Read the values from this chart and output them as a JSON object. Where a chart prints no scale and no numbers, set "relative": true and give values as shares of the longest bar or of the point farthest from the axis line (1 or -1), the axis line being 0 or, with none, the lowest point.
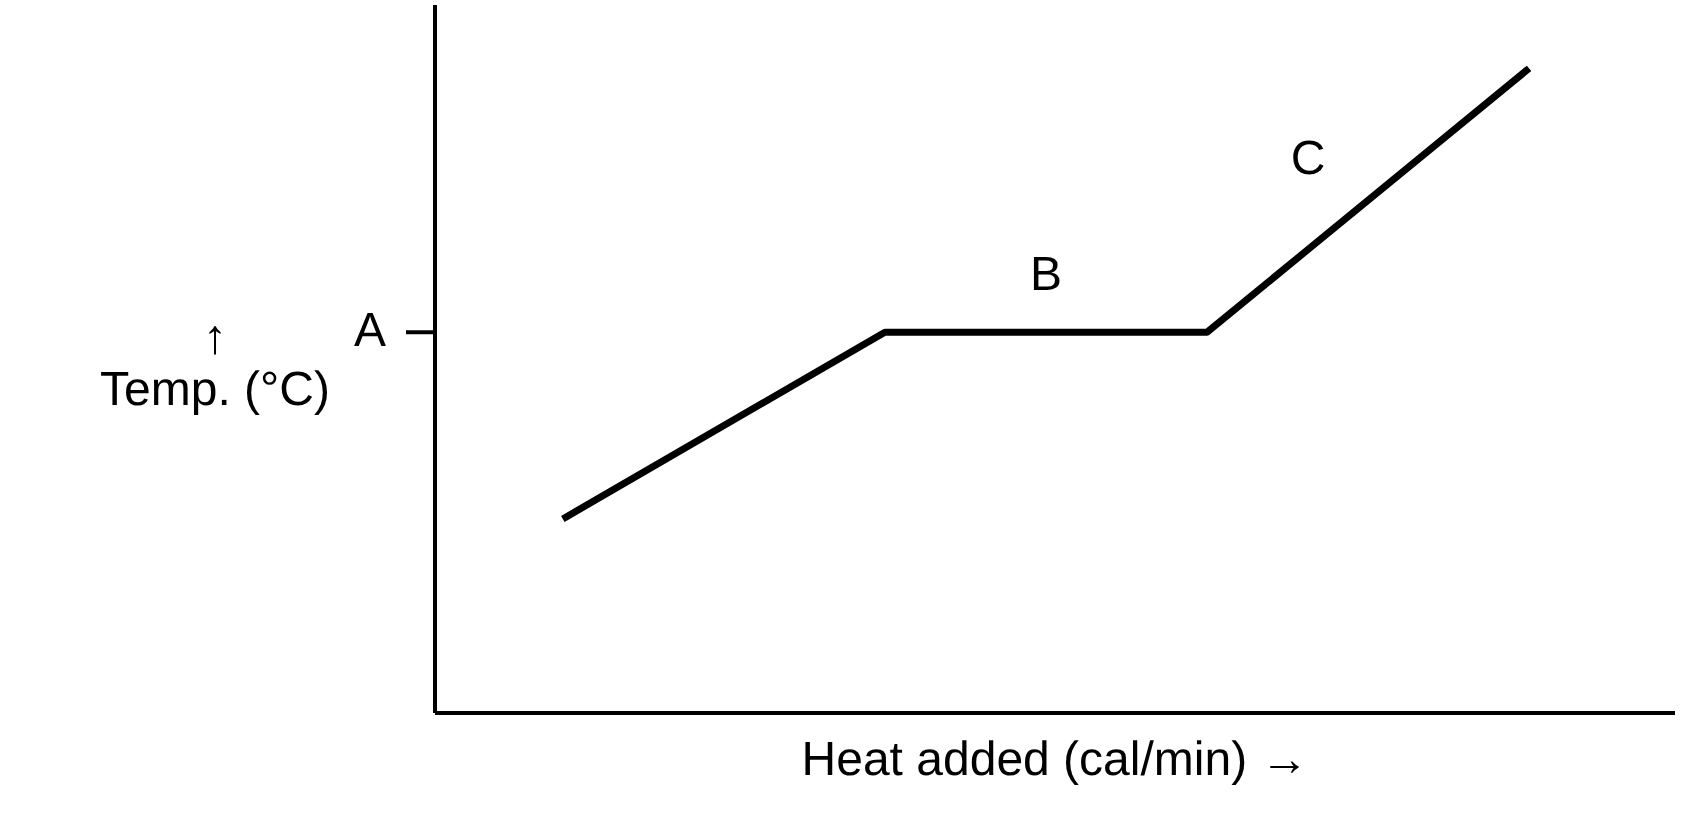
{
  "chart_data": {
    "type": "line",
    "relative": true,
    "xlabel": "Heat added (cal/min) →",
    "ylabel": "↑\nTemp. (°C)",
    "categories": [
      null,
      null,
      null,
      null
    ],
    "series": [
      {
        "color": "#000000",
        "values": [
          0.3,
          0.59,
          0.59,
          1.0
        ]
      }
    ],
    "annotations": [
      "A",
      "B",
      "C"
    ],
    "line_style": "solid"
  }
}
